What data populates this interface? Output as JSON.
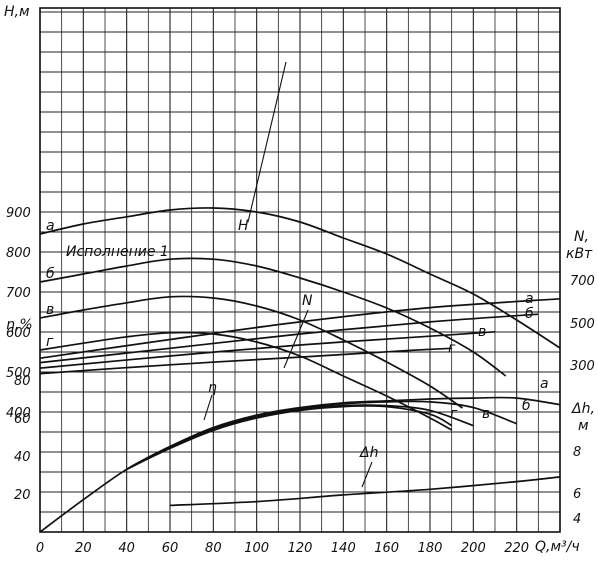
{
  "chart_data": {
    "type": "line",
    "labels": {
      "y_head": "H,м",
      "y_eff": "η,%",
      "x_unit": "Q,м³/ч",
      "r_power_1": "N,",
      "r_power_2": "кВт",
      "r_npsh_1": "Δh,",
      "r_npsh_2": "м",
      "variant_note": "Исполнение 1",
      "curve_H": "H",
      "curve_N": "N",
      "curve_eta": "η",
      "curve_dh": "Δh"
    },
    "x_ticks": [
      "0",
      "20",
      "40",
      "60",
      "80",
      "100",
      "120",
      "140",
      "160",
      "180",
      "200",
      "220"
    ],
    "head_ticks": [
      "400",
      "500",
      "600",
      "700",
      "800",
      "900"
    ],
    "eff_ticks": [
      "20",
      "40",
      "60",
      "80"
    ],
    "power_ticks": [
      "300",
      "500",
      "700"
    ],
    "npsh_ticks": [
      "4",
      "6",
      "8"
    ],
    "x_range": [
      0,
      240
    ],
    "head_range": [
      300,
      950
    ],
    "eff_range": [
      0,
      110
    ],
    "grid": true,
    "series": {
      "head": [
        {
          "name": "а",
          "x": [
            0,
            20,
            40,
            60,
            80,
            100,
            120,
            140,
            160,
            180,
            200,
            220,
            240
          ],
          "y": [
            845,
            870,
            888,
            905,
            910,
            900,
            875,
            835,
            795,
            745,
            695,
            630,
            560
          ]
        },
        {
          "name": "б",
          "x": [
            0,
            20,
            40,
            60,
            80,
            100,
            120,
            140,
            160,
            180,
            200,
            215
          ],
          "y": [
            725,
            745,
            765,
            782,
            782,
            765,
            735,
            700,
            660,
            610,
            550,
            490
          ]
        },
        {
          "name": "в",
          "x": [
            0,
            20,
            40,
            60,
            80,
            100,
            120,
            140,
            160,
            180,
            195
          ],
          "y": [
            635,
            655,
            673,
            688,
            685,
            665,
            630,
            580,
            525,
            465,
            410
          ]
        },
        {
          "name": "г",
          "x": [
            0,
            20,
            40,
            60,
            80,
            100,
            120,
            140,
            160,
            180,
            190
          ],
          "y": [
            555,
            572,
            588,
            598,
            595,
            575,
            540,
            490,
            440,
            385,
            355
          ]
        }
      ],
      "power": [
        {
          "name": "а",
          "x": [
            0,
            60,
            120,
            180,
            240
          ],
          "y": [
            79,
            87.5,
            95.5,
            102,
            106
          ]
        },
        {
          "name": "б",
          "x": [
            0,
            60,
            120,
            180,
            230
          ],
          "y": [
            77,
            83.5,
            90,
            95.5,
            99
          ]
        },
        {
          "name": "в",
          "x": [
            0,
            60,
            120,
            180,
            210
          ],
          "y": [
            74.5,
            80,
            85,
            89,
            91
          ]
        },
        {
          "name": "г",
          "x": [
            0,
            60,
            120,
            170,
            190
          ],
          "y": [
            72,
            76,
            79.5,
            82.5,
            83.5
          ]
        }
      ],
      "efficiency": [
        {
          "name": "а",
          "x": [
            0,
            20,
            40,
            60,
            80,
            100,
            120,
            140,
            160,
            180,
            200,
            220,
            240
          ],
          "y": [
            0,
            17,
            33,
            45,
            55,
            61.5,
            65.5,
            68,
            69,
            70,
            70.5,
            70.5,
            67
          ]
        },
        {
          "name": "б",
          "x": [
            40,
            60,
            80,
            100,
            120,
            140,
            160,
            180,
            200,
            220
          ],
          "y": [
            33,
            45,
            54.5,
            61,
            65,
            67.5,
            68.5,
            68.5,
            65.5,
            57
          ]
        },
        {
          "name": "в",
          "x": [
            40,
            60,
            80,
            100,
            120,
            140,
            160,
            180,
            200
          ],
          "y": [
            33,
            44.5,
            54,
            60.5,
            64.5,
            66.5,
            66.5,
            64,
            56
          ]
        },
        {
          "name": "г",
          "x": [
            40,
            60,
            80,
            100,
            120,
            140,
            160,
            180,
            190
          ],
          "y": [
            33,
            44,
            53.5,
            60,
            64,
            66,
            66,
            62,
            56
          ]
        }
      ],
      "npsh": [
        {
          "name": "Δh",
          "x": [
            60,
            100,
            140,
            180,
            220,
            240
          ],
          "y": [
            14,
            16,
            19.5,
            22.5,
            26.5,
            29
          ]
        }
      ]
    },
    "curve_letters": {
      "head": [
        "а",
        "б",
        "в",
        "г"
      ],
      "power": [
        "а",
        "б",
        "в",
        "г"
      ],
      "efficiency": [
        "а",
        "б",
        "в",
        "г"
      ]
    }
  }
}
